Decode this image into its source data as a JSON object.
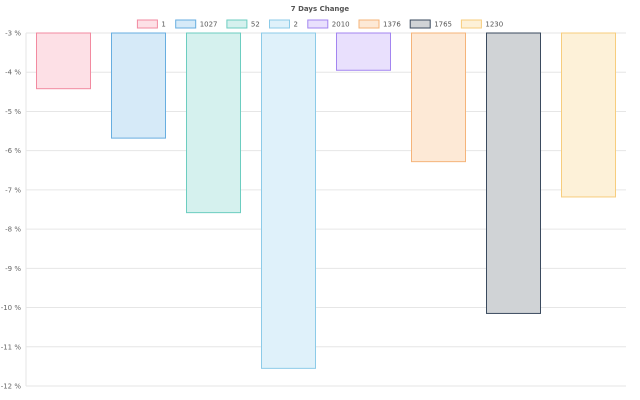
{
  "chart_data": {
    "type": "bar",
    "title": "7 Days Change",
    "xlabel": "",
    "ylabel": "",
    "categories": [
      "1",
      "1027",
      "52",
      "2",
      "2010",
      "1376",
      "1765",
      "1230"
    ],
    "values": [
      -4.42,
      -5.68,
      -7.58,
      -11.55,
      -3.95,
      -6.28,
      -10.15,
      -7.18
    ],
    "ylim": [
      -12,
      -3
    ],
    "yticks": [
      "-3 %",
      "-4 %",
      "-5 %",
      "-6 %",
      "-7 %",
      "-8 %",
      "-9 %",
      "-10 %",
      "-11 %",
      "-12 %"
    ],
    "legend_position": "top-center",
    "colors": {
      "fills": [
        "#fde0e6",
        "#d6eaf8",
        "#d5f1ee",
        "#dff1fa",
        "#e9e0fd",
        "#fde9d6",
        "#d0d3d6",
        "#fdf1d8"
      ],
      "strokes": [
        "#f28aa0",
        "#67aee0",
        "#6ccdc0",
        "#8ccbe8",
        "#a385f0",
        "#f5b47a",
        "#3a4a5e",
        "#f7cd7d"
      ]
    }
  }
}
